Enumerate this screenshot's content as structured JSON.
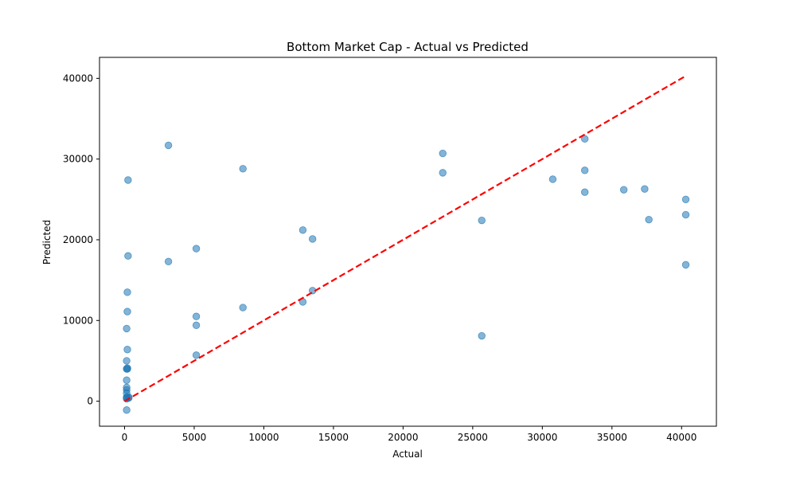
{
  "chart_data": {
    "type": "scatter",
    "title": "Bottom Market Cap - Actual vs Predicted",
    "xlabel": "Actual",
    "ylabel": "Predicted",
    "xlim": [
      -1800,
      42500
    ],
    "ylim": [
      -3100,
      42600
    ],
    "xticks": [
      0,
      5000,
      10000,
      15000,
      20000,
      25000,
      30000,
      35000,
      40000
    ],
    "yticks": [
      0,
      10000,
      20000,
      30000,
      40000
    ],
    "colors": {
      "points": "#1f77b4",
      "reference_line": "#ff0000"
    },
    "reference_line": {
      "from": [
        0,
        0
      ],
      "to": [
        40300,
        40300
      ],
      "style": "dashed"
    },
    "series": [
      {
        "x": [
          150,
          150,
          150,
          150,
          150,
          150,
          150,
          150,
          150,
          200,
          200,
          150,
          200,
          150,
          200,
          200,
          250,
          250,
          300,
          300,
          3150,
          3150,
          5150,
          5150,
          5150,
          5150,
          8500,
          8500,
          12800,
          12800,
          13500,
          13500,
          22850,
          22850,
          25650,
          25650,
          30750,
          33050,
          33050,
          33050,
          35850,
          37350,
          37650,
          40300,
          40300,
          40300
        ],
        "y": [
          -1100,
          300,
          400,
          500,
          1000,
          1400,
          1700,
          2600,
          4000,
          4000,
          4100,
          5000,
          6400,
          9000,
          11100,
          13500,
          18000,
          27400,
          400,
          500,
          17300,
          31700,
          5700,
          9400,
          10500,
          18900,
          11600,
          28800,
          12300,
          21200,
          13700,
          20100,
          28300,
          30700,
          8100,
          22400,
          27500,
          25900,
          28600,
          32500,
          26200,
          26300,
          22500,
          16900,
          23100,
          25000
        ]
      }
    ]
  }
}
